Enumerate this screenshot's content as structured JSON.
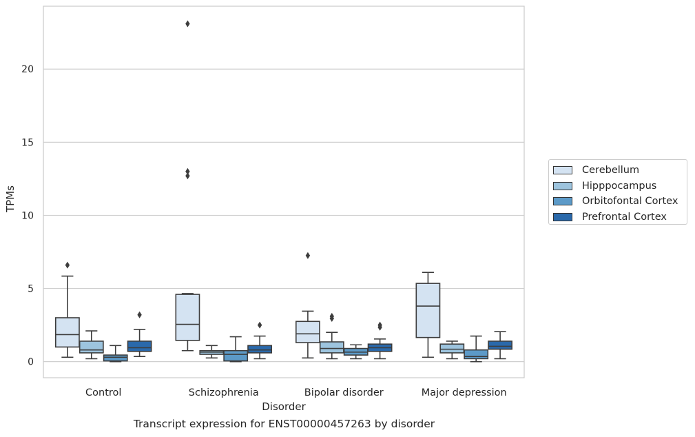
{
  "chart_data": {
    "type": "box",
    "title": "Transcript expression for ENST00000457263 by disorder",
    "xlabel": "Disorder",
    "ylabel": "TPMs",
    "ylim": [
      -1.1,
      24.3
    ],
    "yticks": [
      "0",
      "5",
      "10",
      "15",
      "20"
    ],
    "grid": true,
    "legend_position": "right",
    "categories": [
      "Control",
      "Schizophrenia",
      "Bipolar disorder",
      "Major depression"
    ],
    "series": [
      {
        "name": "Cerebellum",
        "color": "#d4e3f2",
        "boxes": [
          {
            "whislo": 0.3,
            "q1": 1.0,
            "med": 1.85,
            "q3": 3.0,
            "whishi": 5.85,
            "fliers": [
              6.6
            ]
          },
          {
            "whislo": 0.75,
            "q1": 1.45,
            "med": 2.55,
            "q3": 4.6,
            "whishi": 4.65,
            "fliers": [
              12.7,
              13.0,
              23.1
            ]
          },
          {
            "whislo": 0.25,
            "q1": 1.3,
            "med": 1.9,
            "q3": 2.75,
            "whishi": 3.45,
            "fliers": [
              7.25
            ]
          },
          {
            "whislo": 0.3,
            "q1": 1.65,
            "med": 3.8,
            "q3": 5.35,
            "whishi": 6.1,
            "fliers": []
          }
        ]
      },
      {
        "name": "Hipppocampus",
        "color": "#9dc4de",
        "boxes": [
          {
            "whislo": 0.2,
            "q1": 0.6,
            "med": 0.8,
            "q3": 1.4,
            "whishi": 2.1,
            "fliers": []
          },
          {
            "whislo": 0.25,
            "q1": 0.5,
            "med": 0.65,
            "q3": 0.75,
            "whishi": 1.1,
            "fliers": []
          },
          {
            "whislo": 0.2,
            "q1": 0.6,
            "med": 0.9,
            "q3": 1.35,
            "whishi": 2.0,
            "fliers": [
              2.95,
              3.1
            ]
          },
          {
            "whislo": 0.2,
            "q1": 0.6,
            "med": 0.85,
            "q3": 1.2,
            "whishi": 1.4,
            "fliers": []
          }
        ]
      },
      {
        "name": "Orbitofontal Cortex",
        "color": "#5c9ac8",
        "boxes": [
          {
            "whislo": 0.0,
            "q1": 0.05,
            "med": 0.3,
            "q3": 0.45,
            "whishi": 1.1,
            "fliers": []
          },
          {
            "whislo": 0.0,
            "q1": 0.05,
            "med": 0.5,
            "q3": 0.75,
            "whishi": 1.7,
            "fliers": []
          },
          {
            "whislo": 0.2,
            "q1": 0.45,
            "med": 0.65,
            "q3": 0.9,
            "whishi": 1.15,
            "fliers": []
          },
          {
            "whislo": 0.0,
            "q1": 0.2,
            "med": 0.35,
            "q3": 0.8,
            "whishi": 1.75,
            "fliers": []
          }
        ]
      },
      {
        "name": "Prefrontal Cortex",
        "color": "#2a69ab",
        "boxes": [
          {
            "whislo": 0.35,
            "q1": 0.7,
            "med": 0.95,
            "q3": 1.4,
            "whishi": 2.2,
            "fliers": [
              3.2
            ]
          },
          {
            "whislo": 0.2,
            "q1": 0.6,
            "med": 0.8,
            "q3": 1.1,
            "whishi": 1.75,
            "fliers": [
              2.5
            ]
          },
          {
            "whislo": 0.2,
            "q1": 0.7,
            "med": 0.95,
            "q3": 1.2,
            "whishi": 1.55,
            "fliers": [
              2.35,
              2.5
            ]
          },
          {
            "whislo": 0.2,
            "q1": 0.85,
            "med": 1.05,
            "q3": 1.4,
            "whishi": 2.05,
            "fliers": []
          }
        ]
      }
    ]
  }
}
